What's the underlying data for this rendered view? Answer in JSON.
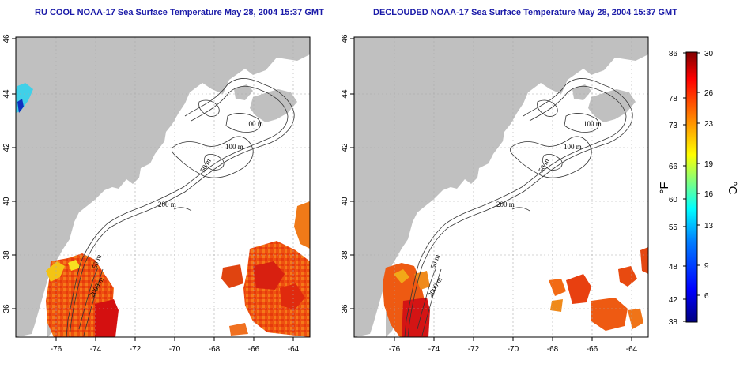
{
  "panels": [
    {
      "title": "RU COOL NOAA-17 Sea Surface Temperature May 28, 2004 15:37 GMT",
      "depth_labels": [
        "100 m",
        "100 m",
        "50 m",
        "200 m",
        "50 m",
        "2000 m"
      ]
    },
    {
      "title": "DECLOUDED NOAA-17 Sea Surface Temperature May 28, 2004 15:37 GMT",
      "depth_labels": [
        "100 m",
        "100 m",
        "50 m",
        "200 m",
        "50 m",
        "2000 m"
      ]
    }
  ],
  "axes": {
    "x_ticks": [
      "-76",
      "-74",
      "-72",
      "-70",
      "-68",
      "-66",
      "-64"
    ],
    "y_ticks": [
      "46",
      "44",
      "42",
      "40",
      "38",
      "36"
    ]
  },
  "colorbar": {
    "fahrenheit_label": "°F",
    "celsius_label": "°C",
    "fahrenheit_ticks": [
      "86",
      "78",
      "73",
      "66",
      "60",
      "55",
      "48",
      "42",
      "38"
    ],
    "celsius_ticks": [
      "30",
      "26",
      "23",
      "19",
      "16",
      "13",
      "9",
      "6"
    ]
  },
  "colors": {
    "land": "#c0c0c0",
    "title": "#1a1aa8",
    "grid": "#aaaaaa",
    "contour": "#333333",
    "sst_scale": [
      "#00007f",
      "#0000ff",
      "#007fff",
      "#00ffff",
      "#7fff7f",
      "#ffff00",
      "#ff7f00",
      "#ff0000",
      "#7f0000"
    ]
  }
}
